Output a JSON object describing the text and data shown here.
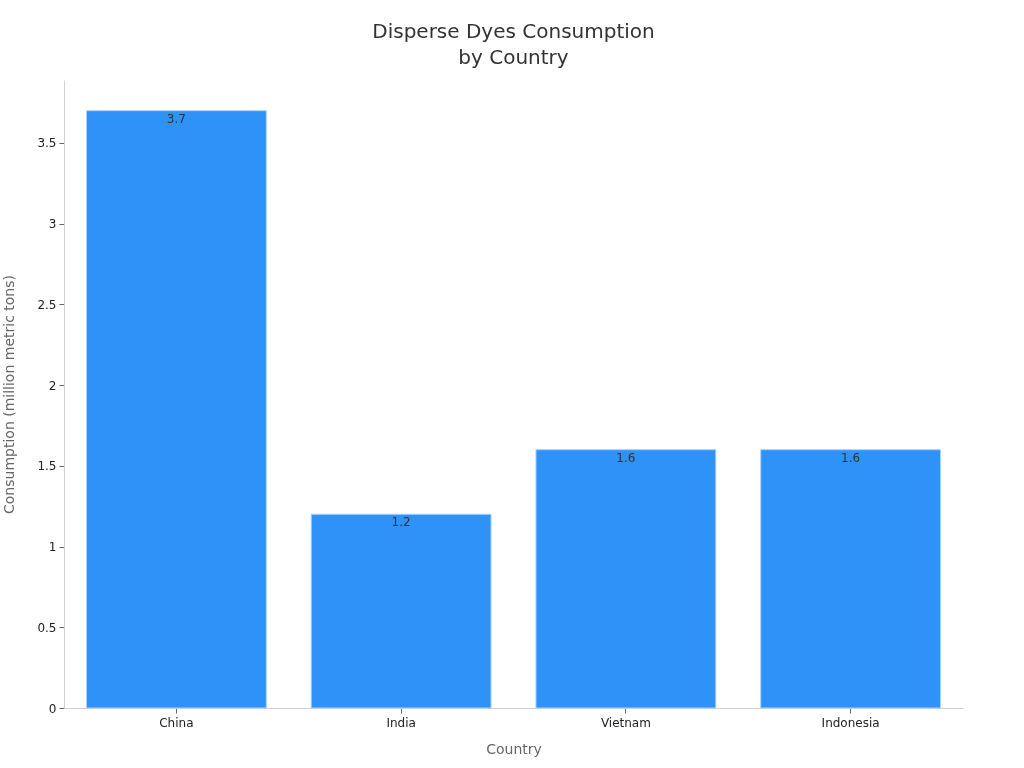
{
  "chart_data": {
    "type": "bar",
    "title": "Disperse Dyes Consumption\nby Country",
    "xlabel": "Country",
    "ylabel": "Consumption (million metric tons)",
    "categories": [
      "China",
      "India",
      "Vietnam",
      "Indonesia"
    ],
    "values": [
      3.7,
      1.2,
      1.6,
      1.6
    ],
    "color": "#2f92f8",
    "ylim": [
      0,
      3.89
    ],
    "yticks": [
      0,
      0.5,
      1,
      1.5,
      2,
      2.5,
      3,
      3.5
    ],
    "data_labels": true
  }
}
